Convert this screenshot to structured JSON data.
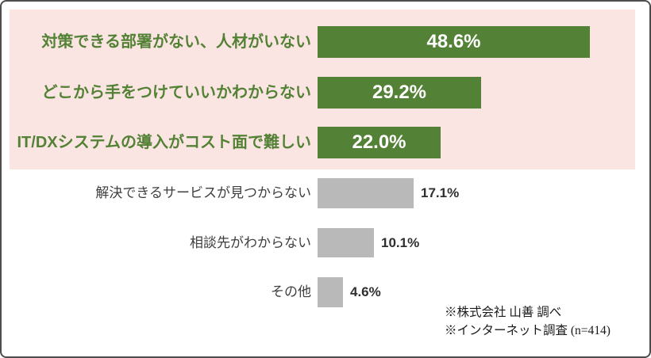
{
  "chart_data": {
    "type": "bar",
    "orientation": "horizontal",
    "unit": "%",
    "grid": false,
    "legend": null,
    "xlim": [
      0,
      56
    ],
    "categories": [
      "対策できる部署がない、人材がいない",
      "どこから手をつけていいかわからない",
      "IT/DXシステムの導入がコスト面で難しい",
      "解決できるサービスが見つからない",
      "相談先がわからない",
      "その他"
    ],
    "values": [
      48.6,
      29.2,
      22.0,
      17.1,
      10.1,
      4.6
    ],
    "value_labels": [
      "48.6%",
      "29.2%",
      "22.0%",
      "17.1%",
      "10.1%",
      "4.6%"
    ],
    "highlighted_count": 3,
    "colors": {
      "highlight_bar": "#538135",
      "highlight_label_text": "#538135",
      "highlight_value_text": "#ffffff",
      "highlight_panel_bg": "#fbe5e2",
      "normal_bar": "#b9b9b9",
      "normal_label_text": "#3f3f3f",
      "normal_value_text": "#2f2f2f"
    }
  },
  "footer": {
    "notes": [
      "※株式会社 山善 調べ",
      "※インターネット調査 (n=414)"
    ]
  }
}
